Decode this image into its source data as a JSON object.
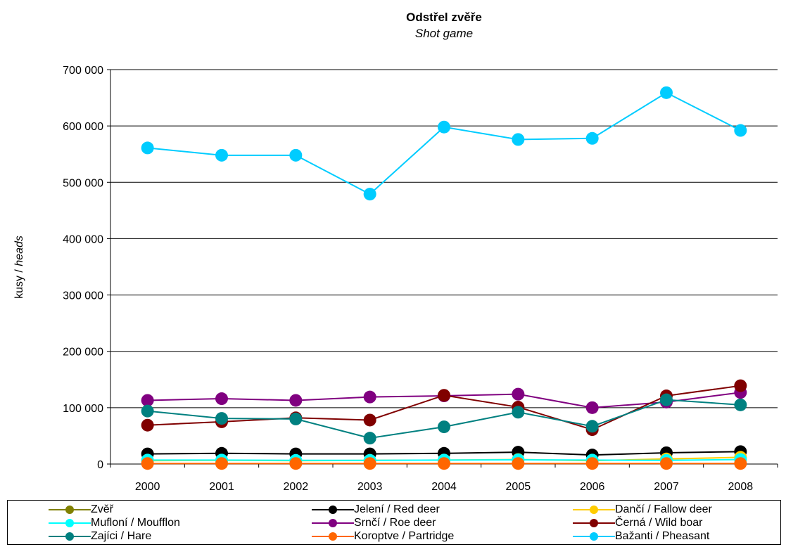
{
  "chart_data": {
    "type": "line",
    "title": "Odstřel zvěře",
    "subtitle": "Shot game",
    "ylabel_plain": "kusy / ",
    "ylabel_italic": "heads",
    "x": [
      "2000",
      "2001",
      "2002",
      "2003",
      "2004",
      "2005",
      "2006",
      "2007",
      "2008"
    ],
    "ylim": [
      0,
      700000
    ],
    "yticks": [
      0,
      100000,
      200000,
      300000,
      400000,
      500000,
      600000,
      700000
    ],
    "ytick_labels": [
      "0",
      "100 000",
      "200 000",
      "300 000",
      "400 000",
      "500 000",
      "600 000",
      "700 000"
    ],
    "grid": "horizontal",
    "legend_position": "bottom",
    "series": [
      {
        "name": "Zvěř",
        "color": "#808000",
        "values": [
          null,
          null,
          null,
          null,
          null,
          null,
          null,
          null,
          null
        ]
      },
      {
        "name": "Jelení / Red deer",
        "color": "#000000",
        "values": [
          18000,
          19000,
          18000,
          18000,
          19000,
          21000,
          16000,
          20000,
          22000
        ]
      },
      {
        "name": "Dančí / Fallow deer",
        "color": "#FFCC00",
        "values": [
          6000,
          6500,
          6000,
          6500,
          7000,
          8000,
          6000,
          9000,
          12000
        ]
      },
      {
        "name": "Mufloní / Moufflon",
        "color": "#00FFFF",
        "values": [
          7000,
          7000,
          6500,
          6500,
          7000,
          7500,
          7000,
          6500,
          8000
        ]
      },
      {
        "name": "Srnčí / Roe deer",
        "color": "#800080",
        "values": [
          113000,
          116000,
          113000,
          119000,
          121000,
          124000,
          100000,
          110000,
          127000
        ]
      },
      {
        "name": "Černá / Wild boar",
        "color": "#800000",
        "values": [
          69000,
          75000,
          82000,
          78000,
          122000,
          101000,
          61000,
          121000,
          139000
        ]
      },
      {
        "name": "Zajíci / Hare",
        "color": "#008080",
        "values": [
          94000,
          81000,
          80000,
          46000,
          66000,
          92000,
          67000,
          114000,
          105000
        ]
      },
      {
        "name": "Koroptve / Partridge",
        "color": "#FF6600",
        "values": [
          1000,
          1000,
          1000,
          1000,
          1000,
          1000,
          1000,
          1000,
          1000
        ]
      },
      {
        "name": "Bažanti / Pheasant",
        "color": "#00CCFF",
        "values": [
          561000,
          548000,
          548000,
          479000,
          598000,
          576000,
          578000,
          659000,
          592000
        ]
      }
    ]
  }
}
